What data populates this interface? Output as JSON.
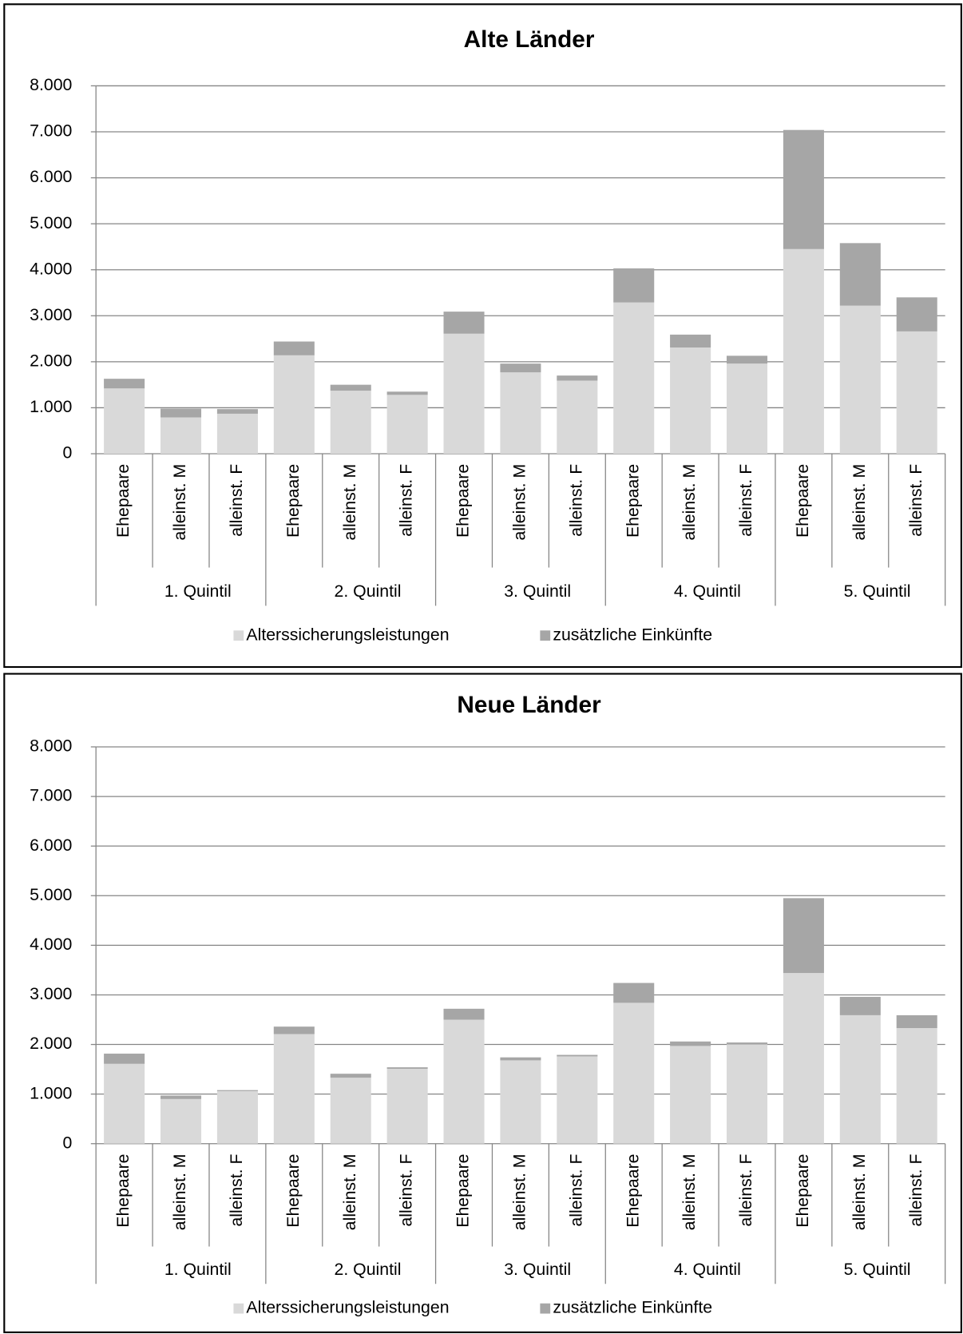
{
  "chart_data": [
    {
      "type": "bar",
      "stacked": true,
      "title": "Alte Länder",
      "categories": [
        "Ehepaare",
        "alleinst. M",
        "alleinst. F",
        "Ehepaare",
        "alleinst. M",
        "alleinst. F",
        "Ehepaare",
        "alleinst. M",
        "alleinst. F",
        "Ehepaare",
        "alleinst. M",
        "alleinst. F",
        "Ehepaare",
        "alleinst. M",
        "alleinst. F"
      ],
      "groups": [
        "1. Quintil",
        "2. Quintil",
        "3. Quintil",
        "4. Quintil",
        "5. Quintil"
      ],
      "series": [
        {
          "name": "Alterssicherungsleistungen",
          "color": "#d9d9d9",
          "values": [
            1420,
            790,
            870,
            2140,
            1370,
            1280,
            2610,
            1770,
            1590,
            3290,
            2310,
            1960,
            4450,
            3220,
            2660
          ]
        },
        {
          "name": "zusätzliche Einkünfte",
          "color": "#a6a6a6",
          "values": [
            210,
            190,
            100,
            300,
            130,
            70,
            480,
            190,
            110,
            740,
            280,
            170,
            2590,
            1360,
            740
          ]
        }
      ],
      "ylim": [
        0,
        8000
      ],
      "yticks": [
        0,
        {
          "value": 1000,
          "label": "1.000"
        },
        {
          "value": 2000,
          "label": "2.000"
        },
        {
          "value": 3000,
          "label": "3.000"
        },
        {
          "value": 4000,
          "label": "4.000"
        },
        {
          "value": 5000,
          "label": "5.000"
        },
        {
          "value": 6000,
          "label": "6.000"
        },
        {
          "value": 7000,
          "label": "7.000"
        },
        {
          "value": 8000,
          "label": "8.000"
        }
      ],
      "grid": true,
      "legend": "bottom"
    },
    {
      "type": "bar",
      "stacked": true,
      "title": "Neue Länder",
      "categories": [
        "Ehepaare",
        "alleinst. M",
        "alleinst. F",
        "Ehepaare",
        "alleinst. M",
        "alleinst. F",
        "Ehepaare",
        "alleinst. M",
        "alleinst. F",
        "Ehepaare",
        "alleinst. M",
        "alleinst. F",
        "Ehepaare",
        "alleinst. M",
        "alleinst. F"
      ],
      "groups": [
        "1. Quintil",
        "2. Quintil",
        "3. Quintil",
        "4. Quintil",
        "5. Quintil"
      ],
      "series": [
        {
          "name": "Alterssicherungsleistungen",
          "color": "#d9d9d9",
          "values": [
            1610,
            900,
            1060,
            2210,
            1330,
            1510,
            2500,
            1680,
            1760,
            2840,
            1970,
            2000,
            3440,
            2590,
            2330
          ]
        },
        {
          "name": "zusätzliche Einkünfte",
          "color": "#a6a6a6",
          "values": [
            205,
            70,
            20,
            150,
            80,
            30,
            220,
            60,
            30,
            400,
            90,
            40,
            1510,
            370,
            260
          ]
        }
      ],
      "ylim": [
        0,
        8000
      ],
      "yticks": [
        0,
        {
          "value": 1000,
          "label": "1.000"
        },
        {
          "value": 2000,
          "label": "2.000"
        },
        {
          "value": 3000,
          "label": "3.000"
        },
        {
          "value": 4000,
          "label": "4.000"
        },
        {
          "value": 5000,
          "label": "5.000"
        },
        {
          "value": 6000,
          "label": "6.000"
        },
        {
          "value": 7000,
          "label": "7.000"
        },
        {
          "value": 8000,
          "label": "8.000"
        }
      ],
      "grid": true,
      "legend": "bottom"
    }
  ]
}
